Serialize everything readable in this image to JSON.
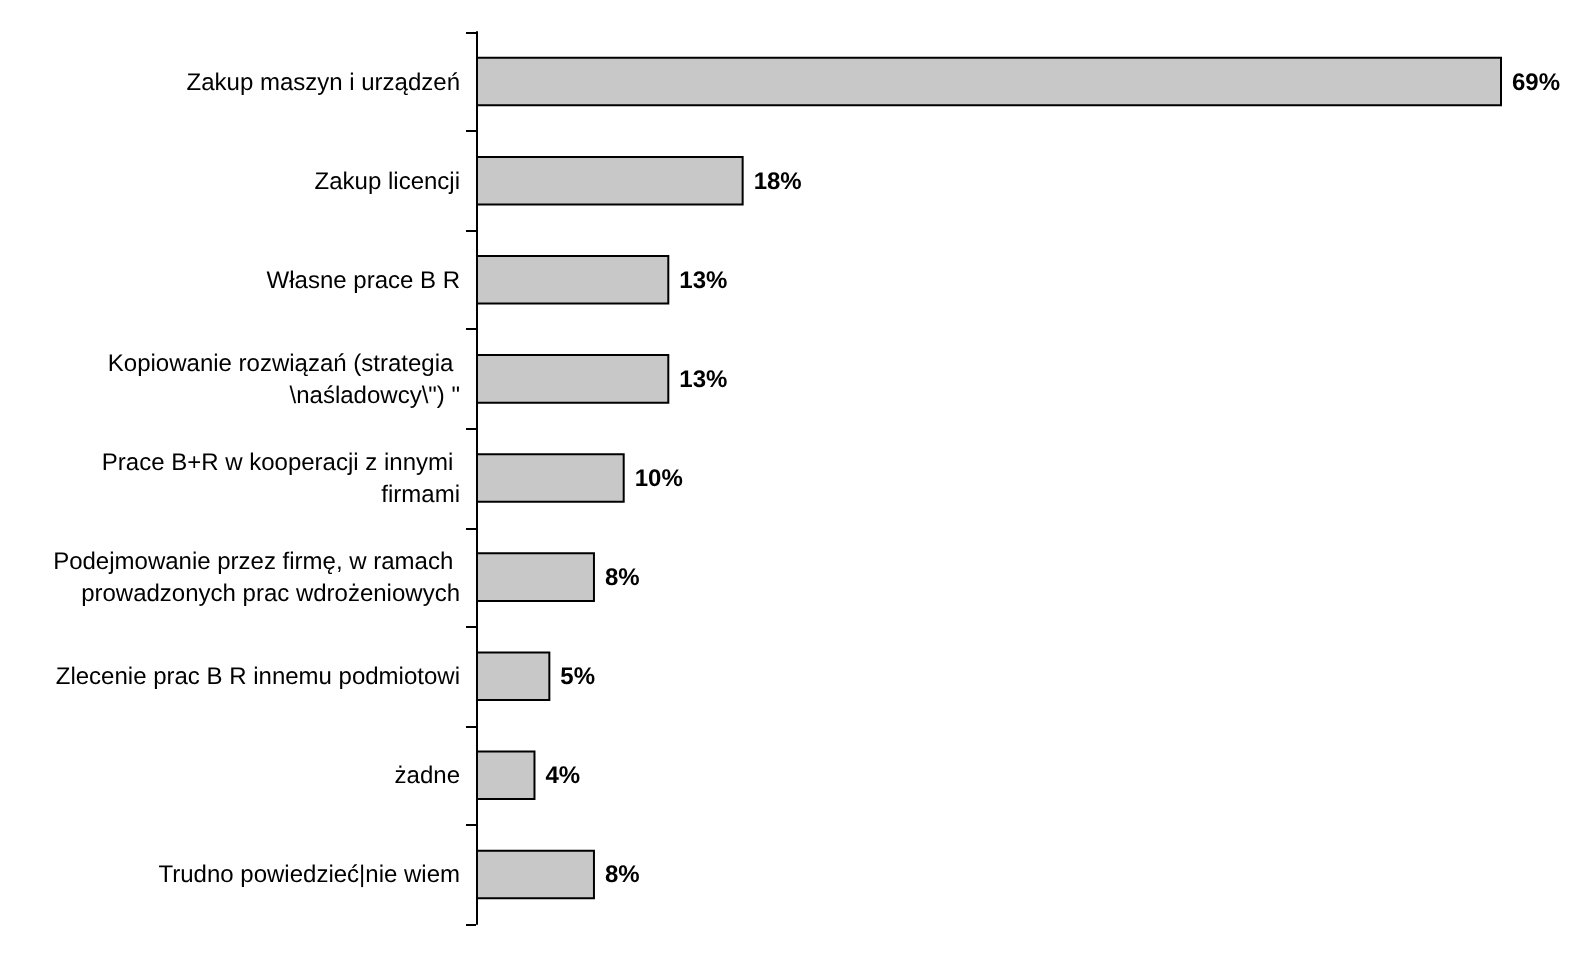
{
  "chart_data": {
    "type": "bar",
    "orientation": "horizontal",
    "categories": [
      "Zakup maszyn i urządzeń",
      "Zakup licencji",
      "Własne prace B R",
      "Kopiowanie rozwiązań (strategia \\naśladowcy\\\") \"",
      "Prace B+R w kooperacji z innymi firmami",
      "Podejmowanie przez firmę, w ramach prowadzonych prac wdrożeniowych",
      "Zlecenie prac B R innemu podmiotowi",
      "żadne",
      "Trudno powiedzieć|nie wiem"
    ],
    "values": [
      69,
      18,
      13,
      13,
      10,
      8,
      5,
      4,
      8
    ],
    "value_labels": [
      "69%",
      "18%",
      "13%",
      "13%",
      "10%",
      "8%",
      "5%",
      "4%",
      "8%"
    ],
    "color": "#c8c8c8"
  }
}
